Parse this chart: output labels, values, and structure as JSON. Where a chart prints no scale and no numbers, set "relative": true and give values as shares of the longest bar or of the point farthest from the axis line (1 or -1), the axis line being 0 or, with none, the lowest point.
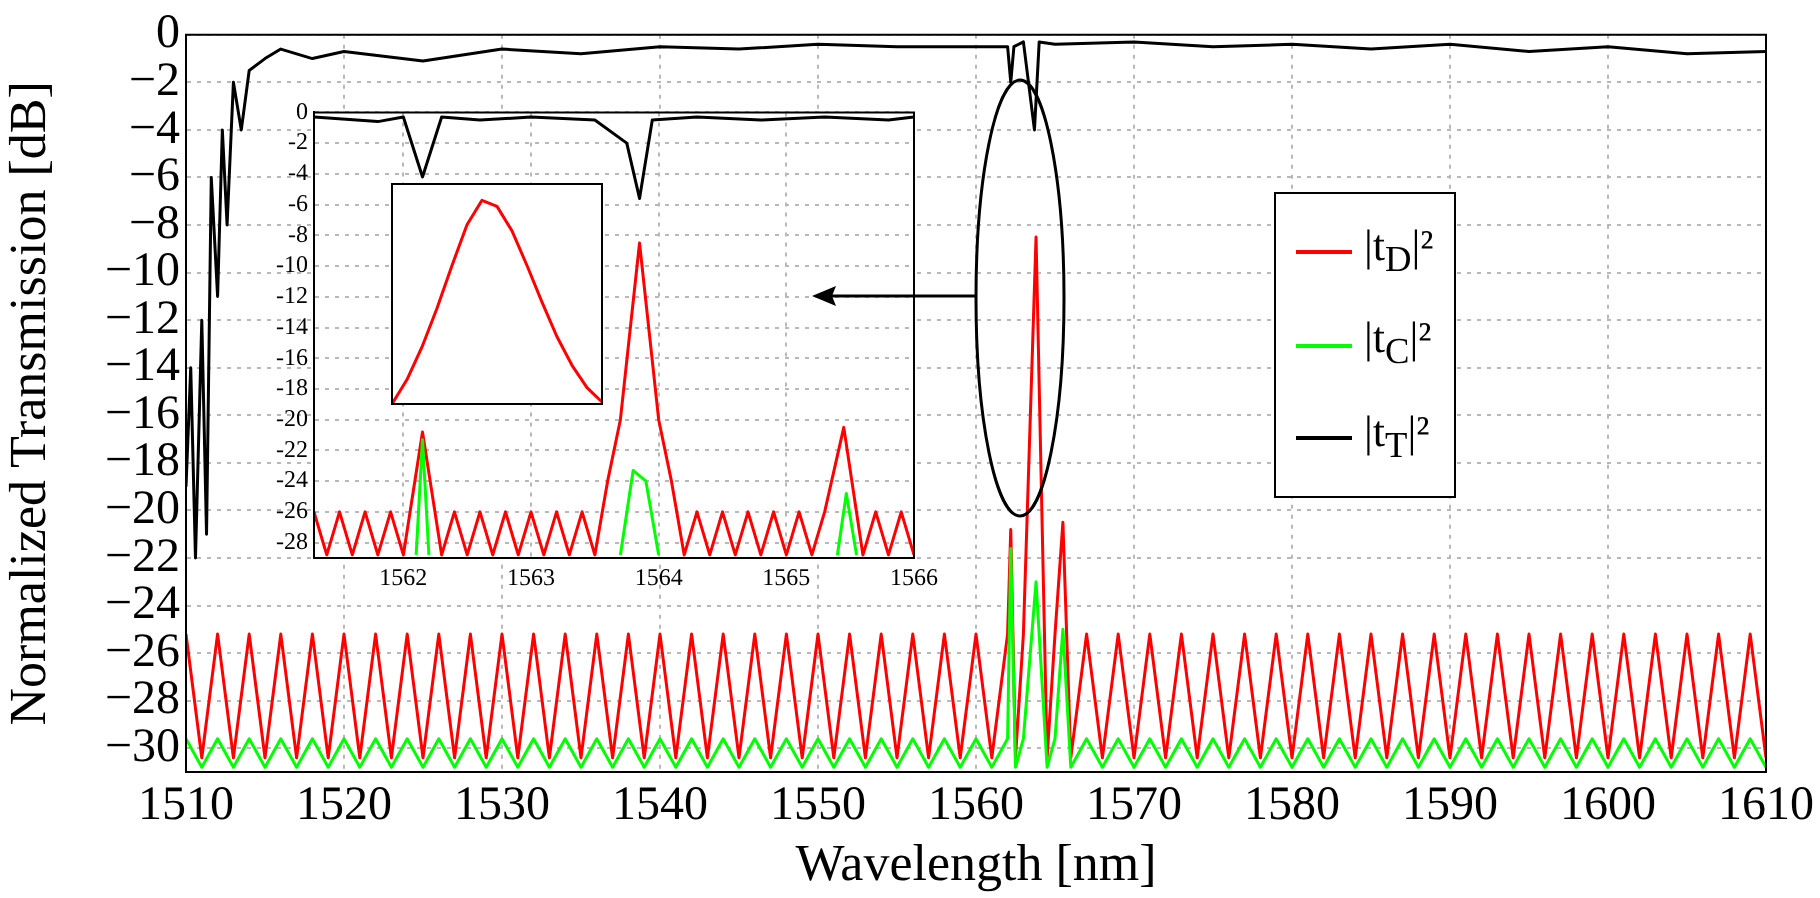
{
  "chart_data": [
    {
      "type": "line",
      "xlabel": "Wavelength [nm]",
      "ylabel": "Normalized Transmission [dB]",
      "xlim": [
        1510,
        1610
      ],
      "ylim": [
        -31,
        0
      ],
      "xticks": [
        1510,
        1520,
        1530,
        1540,
        1550,
        1560,
        1570,
        1580,
        1590,
        1600,
        1610
      ],
      "yticks": [
        {
          "value": -30,
          "label": "−30"
        },
        {
          "value": -28,
          "label": "−28"
        },
        {
          "value": -26,
          "label": "−26"
        },
        {
          "value": -24,
          "label": "−24"
        },
        {
          "value": -22,
          "label": "−22"
        },
        {
          "value": -20,
          "label": "−20"
        },
        {
          "value": -18,
          "label": "−18"
        },
        {
          "value": -16,
          "label": "−16"
        },
        {
          "value": -14,
          "label": "−14"
        },
        {
          "value": -12,
          "label": "−12"
        },
        {
          "value": -10,
          "label": "−10"
        },
        {
          "value": -8,
          "label": "−8"
        },
        {
          "value": -6,
          "label": "−6"
        },
        {
          "value": -4,
          "label": "−4"
        },
        {
          "value": -2,
          "label": "−2"
        },
        {
          "value": 0,
          "label": "0"
        }
      ],
      "grid": true,
      "legend": "right",
      "series": [
        {
          "name": "|t$_{D}$|²",
          "color": "#ff0000",
          "x": [
            1510,
            1511,
            1512,
            1513,
            1514,
            1515,
            1516,
            1517,
            1518,
            1519,
            1520,
            1521,
            1522,
            1523,
            1524,
            1525,
            1526,
            1527,
            1528,
            1529,
            1530,
            1531,
            1532,
            1533,
            1534,
            1535,
            1536,
            1537,
            1538,
            1539,
            1540,
            1541,
            1542,
            1543,
            1544,
            1545,
            1546,
            1547,
            1548,
            1549,
            1550,
            1551,
            1552,
            1553,
            1554,
            1555,
            1556,
            1557,
            1558,
            1559,
            1560,
            1561,
            1562,
            1562.2,
            1562.5,
            1563,
            1563.8,
            1564.5,
            1565,
            1565.5,
            1566,
            1567,
            1568,
            1569,
            1570,
            1571,
            1572,
            1573,
            1574,
            1575,
            1576,
            1577,
            1578,
            1579,
            1580,
            1581,
            1582,
            1583,
            1584,
            1585,
            1586,
            1587,
            1588,
            1589,
            1590,
            1591,
            1592,
            1593,
            1594,
            1595,
            1596,
            1597,
            1598,
            1599,
            1600,
            1601,
            1602,
            1603,
            1604,
            1605,
            1606,
            1607,
            1608,
            1609,
            1610
          ],
          "values": [
            -25.2,
            -30.4,
            -25.2,
            -30.4,
            -25.2,
            -30.4,
            -25.2,
            -30.4,
            -25.2,
            -30.4,
            -25.2,
            -30.4,
            -25.2,
            -30.4,
            -25.2,
            -30.4,
            -25.2,
            -30.4,
            -25.2,
            -30.4,
            -25.2,
            -30.4,
            -25.2,
            -30.4,
            -25.2,
            -30.4,
            -25.2,
            -30.4,
            -25.2,
            -30.4,
            -25.2,
            -30.4,
            -25.2,
            -30.4,
            -25.2,
            -30.4,
            -25.2,
            -30.4,
            -25.2,
            -30.4,
            -25.2,
            -30.4,
            -25.2,
            -30.4,
            -25.2,
            -30.4,
            -25.2,
            -30.4,
            -25.2,
            -30.4,
            -25.2,
            -30.4,
            -25.2,
            -20.8,
            -30.4,
            -25.2,
            -8.5,
            -30.4,
            -25.2,
            -20.5,
            -30.4,
            -25.2,
            -30.4,
            -25.2,
            -30.4,
            -25.2,
            -30.4,
            -25.2,
            -30.4,
            -25.2,
            -30.4,
            -25.2,
            -30.4,
            -25.2,
            -30.4,
            -25.2,
            -30.4,
            -25.2,
            -30.4,
            -25.2,
            -30.4,
            -25.2,
            -30.4,
            -25.2,
            -30.4,
            -25.2,
            -30.4,
            -25.2,
            -30.4,
            -25.2,
            -30.4,
            -25.2,
            -30.4,
            -25.2,
            -30.4,
            -25.2,
            -30.4,
            -25.2,
            -30.4,
            -25.2,
            -30.4,
            -25.2,
            -30.4,
            -25.2,
            -30.4
          ]
        },
        {
          "name": "|t$_{C}$|²",
          "color": "#00ff00",
          "x": [
            1510,
            1511,
            1512,
            1513,
            1514,
            1515,
            1516,
            1517,
            1518,
            1519,
            1520,
            1521,
            1522,
            1523,
            1524,
            1525,
            1526,
            1527,
            1528,
            1529,
            1530,
            1531,
            1532,
            1533,
            1534,
            1535,
            1536,
            1537,
            1538,
            1539,
            1540,
            1541,
            1542,
            1543,
            1544,
            1545,
            1546,
            1547,
            1548,
            1549,
            1550,
            1551,
            1552,
            1553,
            1554,
            1555,
            1556,
            1557,
            1558,
            1559,
            1560,
            1561,
            1562,
            1562.2,
            1562.5,
            1563,
            1563.8,
            1564.5,
            1565,
            1565.5,
            1566,
            1567,
            1568,
            1569,
            1570,
            1571,
            1572,
            1573,
            1574,
            1575,
            1576,
            1577,
            1578,
            1579,
            1580,
            1581,
            1582,
            1583,
            1584,
            1585,
            1586,
            1587,
            1588,
            1589,
            1590,
            1591,
            1592,
            1593,
            1594,
            1595,
            1596,
            1597,
            1598,
            1599,
            1600,
            1601,
            1602,
            1603,
            1604,
            1605,
            1606,
            1607,
            1608,
            1609,
            1610
          ],
          "values": [
            -29.6,
            -30.8,
            -29.6,
            -30.8,
            -29.6,
            -30.8,
            -29.6,
            -30.8,
            -29.6,
            -30.8,
            -29.6,
            -30.8,
            -29.6,
            -30.8,
            -29.6,
            -30.8,
            -29.6,
            -30.8,
            -29.6,
            -30.8,
            -29.6,
            -30.8,
            -29.6,
            -30.8,
            -29.6,
            -30.8,
            -29.6,
            -30.8,
            -29.6,
            -30.8,
            -29.6,
            -30.8,
            -29.6,
            -30.8,
            -29.6,
            -30.8,
            -29.6,
            -30.8,
            -29.6,
            -30.8,
            -29.6,
            -30.8,
            -29.6,
            -30.8,
            -29.6,
            -30.8,
            -29.6,
            -30.8,
            -29.6,
            -30.8,
            -29.6,
            -30.8,
            -29.6,
            -21.6,
            -30.8,
            -29.6,
            -23,
            -30.8,
            -29.6,
            -25,
            -30.8,
            -29.6,
            -30.8,
            -29.6,
            -30.8,
            -29.6,
            -30.8,
            -29.6,
            -30.8,
            -29.6,
            -30.8,
            -29.6,
            -30.8,
            -29.6,
            -30.8,
            -29.6,
            -30.8,
            -29.6,
            -30.8,
            -29.6,
            -30.8,
            -29.6,
            -30.8,
            -29.6,
            -30.8,
            -29.6,
            -30.8,
            -29.6,
            -30.8,
            -29.6,
            -30.8,
            -29.6,
            -30.8,
            -29.6,
            -30.8,
            -29.6,
            -30.8,
            -29.6,
            -30.8,
            -29.6,
            -30.8,
            -29.6,
            -30.8,
            -29.6,
            -30.8
          ]
        },
        {
          "name": "|t$_{T}$|²",
          "color": "#000000",
          "x": [
            1510,
            1510.3,
            1510.6,
            1511,
            1511.3,
            1511.6,
            1512,
            1512.3,
            1512.6,
            1513,
            1513.5,
            1514,
            1515,
            1516,
            1518,
            1520,
            1525,
            1530,
            1535,
            1540,
            1545,
            1550,
            1555,
            1560,
            1562,
            1562.2,
            1562.4,
            1563,
            1563.7,
            1564,
            1565,
            1570,
            1575,
            1580,
            1585,
            1590,
            1595,
            1600,
            1605,
            1610
          ],
          "values": [
            -19,
            -14,
            -22,
            -12,
            -21,
            -6,
            -11,
            -4,
            -8,
            -2,
            -4,
            -1.5,
            -1,
            -0.6,
            -1,
            -0.7,
            -1.1,
            -0.6,
            -0.8,
            -0.5,
            -0.6,
            -0.4,
            -0.5,
            -0.5,
            -0.5,
            -2,
            -0.5,
            -0.3,
            -4,
            -0.3,
            -0.4,
            -0.3,
            -0.5,
            -0.4,
            -0.6,
            -0.4,
            -0.7,
            -0.5,
            -0.8,
            -0.7
          ]
        }
      ]
    },
    {
      "type": "line",
      "xlim": [
        1561.3,
        1566
      ],
      "ylim": [
        -29,
        0
      ],
      "xticks": [
        1562,
        1563,
        1564,
        1565,
        1566
      ],
      "yticks": [
        -28,
        -26,
        -24,
        -22,
        -20,
        -18,
        -16,
        -14,
        -12,
        -10,
        -8,
        -6,
        -4,
        -2,
        0
      ],
      "grid": true,
      "series": [
        {
          "color": "#ff0000",
          "x": [
            1561.3,
            1561.4,
            1561.5,
            1561.6,
            1561.7,
            1561.8,
            1561.9,
            1562.0,
            1562.15,
            1562.3,
            1562.4,
            1562.5,
            1562.6,
            1562.7,
            1562.8,
            1562.9,
            1563.0,
            1563.1,
            1563.2,
            1563.3,
            1563.4,
            1563.5,
            1563.6,
            1563.7,
            1563.85,
            1564.0,
            1564.1,
            1564.2,
            1564.3,
            1564.4,
            1564.5,
            1564.6,
            1564.7,
            1564.8,
            1564.9,
            1565.0,
            1565.1,
            1565.2,
            1565.3,
            1565.45,
            1565.6,
            1565.7,
            1565.8,
            1565.9,
            1566.0
          ],
          "values": [
            -26,
            -28.8,
            -26,
            -28.8,
            -26,
            -28.8,
            -26,
            -28.8,
            -20.8,
            -28.8,
            -26,
            -28.8,
            -26,
            -28.8,
            -26,
            -28.8,
            -26,
            -28.8,
            -26,
            -28.8,
            -26,
            -28.8,
            -24,
            -20,
            -8.5,
            -20,
            -24,
            -28.8,
            -26,
            -28.8,
            -26,
            -28.8,
            -26,
            -28.8,
            -26,
            -28.8,
            -26,
            -28.8,
            -26,
            -20.5,
            -28.8,
            -26,
            -28.8,
            -26,
            -28.8
          ]
        },
        {
          "color": "#00ff00",
          "x": [
            1562.1,
            1562.15,
            1562.2,
            1562.5,
            1563.7,
            1563.8,
            1563.9,
            1564.0,
            1565.0,
            1565.4,
            1565.47,
            1565.55
          ],
          "values": [
            -28.8,
            -21.3,
            -28.8,
            null,
            -28.8,
            -23.3,
            -24,
            -28.8,
            null,
            -28.8,
            -24.8,
            -28.8
          ]
        },
        {
          "color": "#000000",
          "x": [
            1561.3,
            1561.8,
            1562.0,
            1562.15,
            1562.3,
            1562.6,
            1563.0,
            1563.5,
            1563.75,
            1563.85,
            1563.95,
            1564.3,
            1564.8,
            1565.3,
            1565.8,
            1566
          ],
          "values": [
            -0.3,
            -0.6,
            -0.3,
            -4.2,
            -0.3,
            -0.5,
            -0.3,
            -0.5,
            -2,
            -5.6,
            -0.5,
            -0.3,
            -0.5,
            -0.3,
            -0.5,
            -0.3
          ]
        }
      ]
    },
    {
      "type": "line",
      "relative": true,
      "categories": [
        null,
        null,
        null,
        null,
        null,
        null,
        null,
        null,
        null,
        null,
        null,
        null,
        null,
        null,
        null
      ],
      "series": [
        {
          "color": "#ff0000",
          "values": [
            0,
            0.12,
            0.28,
            0.47,
            0.68,
            0.88,
            1,
            0.97,
            0.85,
            0.68,
            0.5,
            0.33,
            0.19,
            0.08,
            0.01
          ]
        }
      ]
    }
  ]
}
